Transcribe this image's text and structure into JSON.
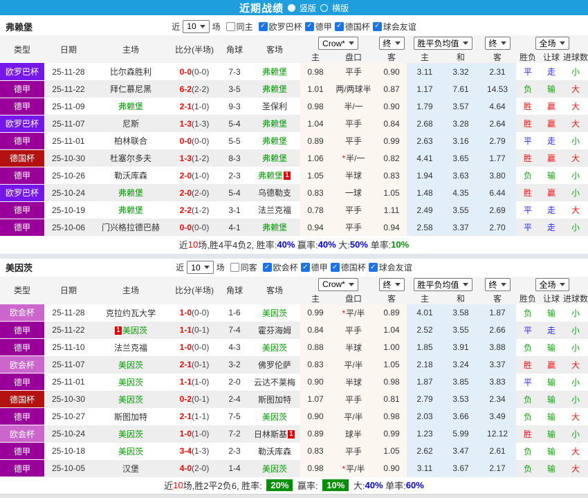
{
  "titlebar": {
    "title": "近期战绩",
    "options": [
      {
        "label": "竖版",
        "selected": true
      },
      {
        "label": "横版",
        "selected": false
      }
    ]
  },
  "colors": {
    "titlebar_bg": "#1E9EDC",
    "europa_league_bg": "#7517E8",
    "bundesliga_bg": "#990099",
    "dfb_pokal_bg": "#B41111",
    "conference_league_bg": "#CC66CC",
    "win_red": "#FF0000",
    "draw_blue": "#0000F0",
    "lose_green": "#009900",
    "team_highlight_green": "#009900",
    "score_red": "#FF0000",
    "odds_cols_bg": "#FBF6EF",
    "mean_cols_bg": "#E2EFF9",
    "summary_badge_bg": "#009000",
    "checkbox_blue": "#1A73E8"
  },
  "sections": [
    {
      "team": "弗赖堡",
      "filter": {
        "near_label": "近",
        "count_value": "10",
        "games_label": "场",
        "same_label": "同主",
        "same_checked": false,
        "competitions": [
          "欧罗巴杯",
          "德甲",
          "德国杯",
          "球会友谊"
        ]
      },
      "dropdowns": {
        "bookmaker": "Crow*",
        "bookmaker_state": "终",
        "mean": "胜平负均值",
        "mean_state": "终",
        "scope": "全场"
      },
      "columns": [
        "类型",
        "日期",
        "主场",
        "比分(半场)",
        "角球",
        "客场",
        "主",
        "盘口",
        "客",
        "主",
        "和",
        "客",
        "胜负",
        "让球",
        "进球数"
      ],
      "rows": [
        {
          "type": "欧罗巴杯",
          "tcls": "t-europa",
          "date": "25-11-28",
          "home": {
            "name": "比尔森胜利"
          },
          "score": "0-0",
          "half": "(0-0)",
          "corner": "7-3",
          "away": {
            "name": "弗赖堡",
            "green": true
          },
          "o1": "0.98",
          "pan": "平手",
          "o2": "0.90",
          "m1": "3.11",
          "m2": "3.32",
          "m3": "2.31",
          "res": [
            "平",
            "走",
            "小"
          ],
          "rcls": [
            "blue",
            "blue",
            "green"
          ]
        },
        {
          "type": "德甲",
          "tcls": "t-bund",
          "date": "25-11-22",
          "home": {
            "name": "拜仁慕尼黑"
          },
          "score": "6-2",
          "half": "(2-2)",
          "corner": "3-5",
          "away": {
            "name": "弗赖堡",
            "green": true
          },
          "o1": "1.01",
          "pan": "两/两球半",
          "o2": "0.87",
          "m1": "1.17",
          "m2": "7.61",
          "m3": "14.53",
          "res": [
            "负",
            "输",
            "大"
          ],
          "rcls": [
            "green",
            "green",
            "red"
          ]
        },
        {
          "type": "德甲",
          "tcls": "t-bund",
          "date": "25-11-09",
          "home": {
            "name": "弗赖堡",
            "green": true
          },
          "score": "2-1",
          "half": "(1-0)",
          "corner": "9-3",
          "away": {
            "name": "圣保利"
          },
          "o1": "0.98",
          "pan": "半/一",
          "o2": "0.90",
          "m1": "1.79",
          "m2": "3.57",
          "m3": "4.64",
          "res": [
            "胜",
            "赢",
            "大"
          ],
          "rcls": [
            "red",
            "red",
            "red"
          ]
        },
        {
          "type": "欧罗巴杯",
          "tcls": "t-europa",
          "date": "25-11-07",
          "home": {
            "name": "尼斯"
          },
          "score": "1-3",
          "half": "(1-3)",
          "corner": "5-4",
          "away": {
            "name": "弗赖堡",
            "green": true
          },
          "o1": "1.04",
          "pan": "平手",
          "o2": "0.84",
          "m1": "2.68",
          "m2": "3.28",
          "m3": "2.64",
          "res": [
            "胜",
            "赢",
            "大"
          ],
          "rcls": [
            "red",
            "red",
            "red"
          ]
        },
        {
          "type": "德甲",
          "tcls": "t-bund",
          "date": "25-11-01",
          "home": {
            "name": "柏林联合"
          },
          "score": "0-0",
          "half": "(0-0)",
          "corner": "5-5",
          "away": {
            "name": "弗赖堡",
            "green": true
          },
          "o1": "0.89",
          "pan": "平手",
          "o2": "0.99",
          "m1": "2.63",
          "m2": "3.16",
          "m3": "2.79",
          "res": [
            "平",
            "走",
            "小"
          ],
          "rcls": [
            "blue",
            "blue",
            "green"
          ]
        },
        {
          "type": "德国杯",
          "tcls": "t-dfb",
          "date": "25-10-30",
          "home": {
            "name": "杜塞尔多夫"
          },
          "score": "1-3",
          "half": "(1-2)",
          "corner": "8-3",
          "away": {
            "name": "弗赖堡",
            "green": true
          },
          "o1": "1.06",
          "pan": "半/一",
          "star": true,
          "o2": "0.82",
          "m1": "4.41",
          "m2": "3.65",
          "m3": "1.77",
          "res": [
            "胜",
            "赢",
            "大"
          ],
          "rcls": [
            "red",
            "red",
            "red"
          ]
        },
        {
          "type": "德甲",
          "tcls": "t-bund",
          "date": "25-10-26",
          "home": {
            "name": "勒沃库森"
          },
          "score": "2-0",
          "half": "(1-0)",
          "corner": "2-3",
          "away": {
            "name": "弗赖堡",
            "green": true,
            "badge_post": "1"
          },
          "o1": "1.05",
          "pan": "半球",
          "o2": "0.83",
          "m1": "1.94",
          "m2": "3.63",
          "m3": "3.80",
          "res": [
            "负",
            "输",
            "小"
          ],
          "rcls": [
            "green",
            "green",
            "green"
          ]
        },
        {
          "type": "欧罗巴杯",
          "tcls": "t-europa",
          "date": "25-10-24",
          "home": {
            "name": "弗赖堡",
            "green": true
          },
          "score": "2-0",
          "half": "(2-0)",
          "corner": "5-4",
          "away": {
            "name": "乌德勒支"
          },
          "o1": "0.83",
          "pan": "一球",
          "o2": "1.05",
          "m1": "1.48",
          "m2": "4.35",
          "m3": "6.44",
          "res": [
            "胜",
            "赢",
            "小"
          ],
          "rcls": [
            "red",
            "red",
            "green"
          ]
        },
        {
          "type": "德甲",
          "tcls": "t-bund",
          "date": "25-10-19",
          "home": {
            "name": "弗赖堡",
            "green": true
          },
          "score": "2-2",
          "half": "(1-2)",
          "corner": "3-1",
          "away": {
            "name": "法兰克福"
          },
          "o1": "0.78",
          "pan": "平手",
          "o2": "1.11",
          "m1": "2.49",
          "m2": "3.55",
          "m3": "2.69",
          "res": [
            "平",
            "走",
            "大"
          ],
          "rcls": [
            "blue",
            "blue",
            "red"
          ]
        },
        {
          "type": "德甲",
          "tcls": "t-bund",
          "date": "25-10-06",
          "home": {
            "name": "门兴格拉德巴赫"
          },
          "score": "0-0",
          "half": "(0-0)",
          "corner": "4-1",
          "away": {
            "name": "弗赖堡",
            "green": true
          },
          "o1": "0.94",
          "pan": "平手",
          "o2": "0.94",
          "m1": "2.58",
          "m2": "3.37",
          "m3": "2.70",
          "res": [
            "平",
            "走",
            "小"
          ],
          "rcls": [
            "blue",
            "blue",
            "green"
          ]
        }
      ],
      "summary": [
        {
          "t": "近",
          "c": "b"
        },
        {
          "t": "10",
          "c": "r"
        },
        {
          "t": "场,胜4平4负2, 胜率:",
          "c": "b"
        },
        {
          "t": "40%",
          "c": "bl"
        },
        {
          "t": " 赢率:",
          "c": "b"
        },
        {
          "t": "40%",
          "c": "bl"
        },
        {
          "t": " 大:",
          "c": "b"
        },
        {
          "t": "50%",
          "c": "bl"
        },
        {
          "t": " 单率:",
          "c": "b"
        },
        {
          "t": "10%",
          "c": "g"
        }
      ]
    },
    {
      "team": "美因茨",
      "filter": {
        "near_label": "近",
        "count_value": "10",
        "games_label": "场",
        "same_label": "同客",
        "same_checked": false,
        "competitions": [
          "欧会杯",
          "德甲",
          "德国杯",
          "球会友谊"
        ]
      },
      "dropdowns": {
        "bookmaker": "Crow*",
        "bookmaker_state": "终",
        "mean": "胜平负均值",
        "mean_state": "终",
        "scope": "全场"
      },
      "columns": [
        "类型",
        "日期",
        "主场",
        "比分(半场)",
        "角球",
        "客场",
        "主",
        "盘口",
        "客",
        "主",
        "和",
        "客",
        "胜负",
        "让球",
        "进球数"
      ],
      "rows": [
        {
          "type": "欧会杯",
          "tcls": "t-conf",
          "date": "25-11-28",
          "home": {
            "name": "克拉约瓦大学"
          },
          "score": "1-0",
          "half": "(0-0)",
          "corner": "1-6",
          "away": {
            "name": "美因茨",
            "green": true
          },
          "o1": "0.99",
          "pan": "平/半",
          "star": true,
          "o2": "0.89",
          "m1": "4.01",
          "m2": "3.58",
          "m3": "1.87",
          "res": [
            "负",
            "输",
            "小"
          ],
          "rcls": [
            "green",
            "green",
            "green"
          ]
        },
        {
          "type": "德甲",
          "tcls": "t-bund",
          "date": "25-11-22",
          "home": {
            "name": "美因茨",
            "green": true,
            "badge_pre": "1"
          },
          "score": "1-1",
          "half": "(0-1)",
          "corner": "7-4",
          "away": {
            "name": "霍芬海姆"
          },
          "o1": "0.84",
          "pan": "平手",
          "o2": "1.04",
          "m1": "2.52",
          "m2": "3.55",
          "m3": "2.66",
          "res": [
            "平",
            "走",
            "小"
          ],
          "rcls": [
            "blue",
            "blue",
            "green"
          ]
        },
        {
          "type": "德甲",
          "tcls": "t-bund",
          "date": "25-11-10",
          "home": {
            "name": "法兰克福"
          },
          "score": "1-0",
          "half": "(0-0)",
          "corner": "4-3",
          "away": {
            "name": "美因茨",
            "green": true
          },
          "o1": "0.88",
          "pan": "半球",
          "o2": "1.00",
          "m1": "1.85",
          "m2": "3.91",
          "m3": "3.88",
          "res": [
            "负",
            "输",
            "小"
          ],
          "rcls": [
            "green",
            "green",
            "green"
          ]
        },
        {
          "type": "欧会杯",
          "tcls": "t-conf",
          "date": "25-11-07",
          "home": {
            "name": "美因茨",
            "green": true
          },
          "score": "2-1",
          "half": "(0-1)",
          "corner": "3-2",
          "away": {
            "name": "佛罗伦萨"
          },
          "o1": "0.83",
          "pan": "平/半",
          "o2": "1.05",
          "m1": "2.18",
          "m2": "3.24",
          "m3": "3.37",
          "res": [
            "胜",
            "赢",
            "大"
          ],
          "rcls": [
            "red",
            "red",
            "red"
          ]
        },
        {
          "type": "德甲",
          "tcls": "t-bund",
          "date": "25-11-01",
          "home": {
            "name": "美因茨",
            "green": true
          },
          "score": "1-1",
          "half": "(1-0)",
          "corner": "2-0",
          "away": {
            "name": "云达不莱梅"
          },
          "o1": "0.90",
          "pan": "半球",
          "o2": "0.98",
          "m1": "1.87",
          "m2": "3.85",
          "m3": "3.83",
          "res": [
            "平",
            "输",
            "小"
          ],
          "rcls": [
            "blue",
            "green",
            "green"
          ]
        },
        {
          "type": "德国杯",
          "tcls": "t-dfb",
          "date": "25-10-30",
          "home": {
            "name": "美因茨",
            "green": true
          },
          "score": "0-2",
          "half": "(0-1)",
          "corner": "2-4",
          "away": {
            "name": "斯图加特"
          },
          "o1": "1.07",
          "pan": "平手",
          "o2": "0.81",
          "m1": "2.79",
          "m2": "3.53",
          "m3": "2.34",
          "res": [
            "负",
            "输",
            "小"
          ],
          "rcls": [
            "green",
            "green",
            "green"
          ]
        },
        {
          "type": "德甲",
          "tcls": "t-bund",
          "date": "25-10-27",
          "home": {
            "name": "斯图加特"
          },
          "score": "2-1",
          "half": "(1-1)",
          "corner": "7-5",
          "away": {
            "name": "美因茨",
            "green": true
          },
          "o1": "0.90",
          "pan": "平/半",
          "o2": "0.98",
          "m1": "2.03",
          "m2": "3.66",
          "m3": "3.49",
          "res": [
            "负",
            "输",
            "大"
          ],
          "rcls": [
            "green",
            "green",
            "red"
          ]
        },
        {
          "type": "欧会杯",
          "tcls": "t-conf",
          "date": "25-10-24",
          "home": {
            "name": "美因茨",
            "green": true
          },
          "score": "1-0",
          "half": "(1-0)",
          "corner": "7-2",
          "away": {
            "name": "日林斯基",
            "badge_post": "1"
          },
          "o1": "0.89",
          "pan": "球半",
          "o2": "0.99",
          "m1": "1.23",
          "m2": "5.99",
          "m3": "12.12",
          "res": [
            "胜",
            "输",
            "小"
          ],
          "rcls": [
            "red",
            "green",
            "green"
          ]
        },
        {
          "type": "德甲",
          "tcls": "t-bund",
          "date": "25-10-18",
          "home": {
            "name": "美因茨",
            "green": true
          },
          "score": "3-4",
          "half": "(1-3)",
          "corner": "2-3",
          "away": {
            "name": "勒沃库森"
          },
          "o1": "0.83",
          "pan": "平手",
          "o2": "1.05",
          "m1": "2.62",
          "m2": "3.47",
          "m3": "2.61",
          "res": [
            "负",
            "输",
            "大"
          ],
          "rcls": [
            "green",
            "green",
            "red"
          ]
        },
        {
          "type": "德甲",
          "tcls": "t-bund",
          "date": "25-10-05",
          "home": {
            "name": "汉堡"
          },
          "score": "4-0",
          "half": "(2-0)",
          "corner": "1-4",
          "away": {
            "name": "美因茨",
            "green": true
          },
          "o1": "0.98",
          "pan": "平/半",
          "star": true,
          "o2": "0.90",
          "m1": "3.11",
          "m2": "3.67",
          "m3": "2.17",
          "res": [
            "负",
            "输",
            "大"
          ],
          "rcls": [
            "green",
            "green",
            "red"
          ]
        }
      ],
      "summary": [
        {
          "t": "近",
          "c": "b"
        },
        {
          "t": "10",
          "c": "r"
        },
        {
          "t": "场,胜2平2负6, 胜率: ",
          "c": "b"
        },
        {
          "t": "20%",
          "c": "gb"
        },
        {
          "t": " 赢率: ",
          "c": "b"
        },
        {
          "t": "10%",
          "c": "gb"
        },
        {
          "t": " 大:",
          "c": "b"
        },
        {
          "t": "40%",
          "c": "bl"
        },
        {
          "t": " 单率:",
          "c": "b"
        },
        {
          "t": "60%",
          "c": "bl"
        }
      ]
    }
  ]
}
